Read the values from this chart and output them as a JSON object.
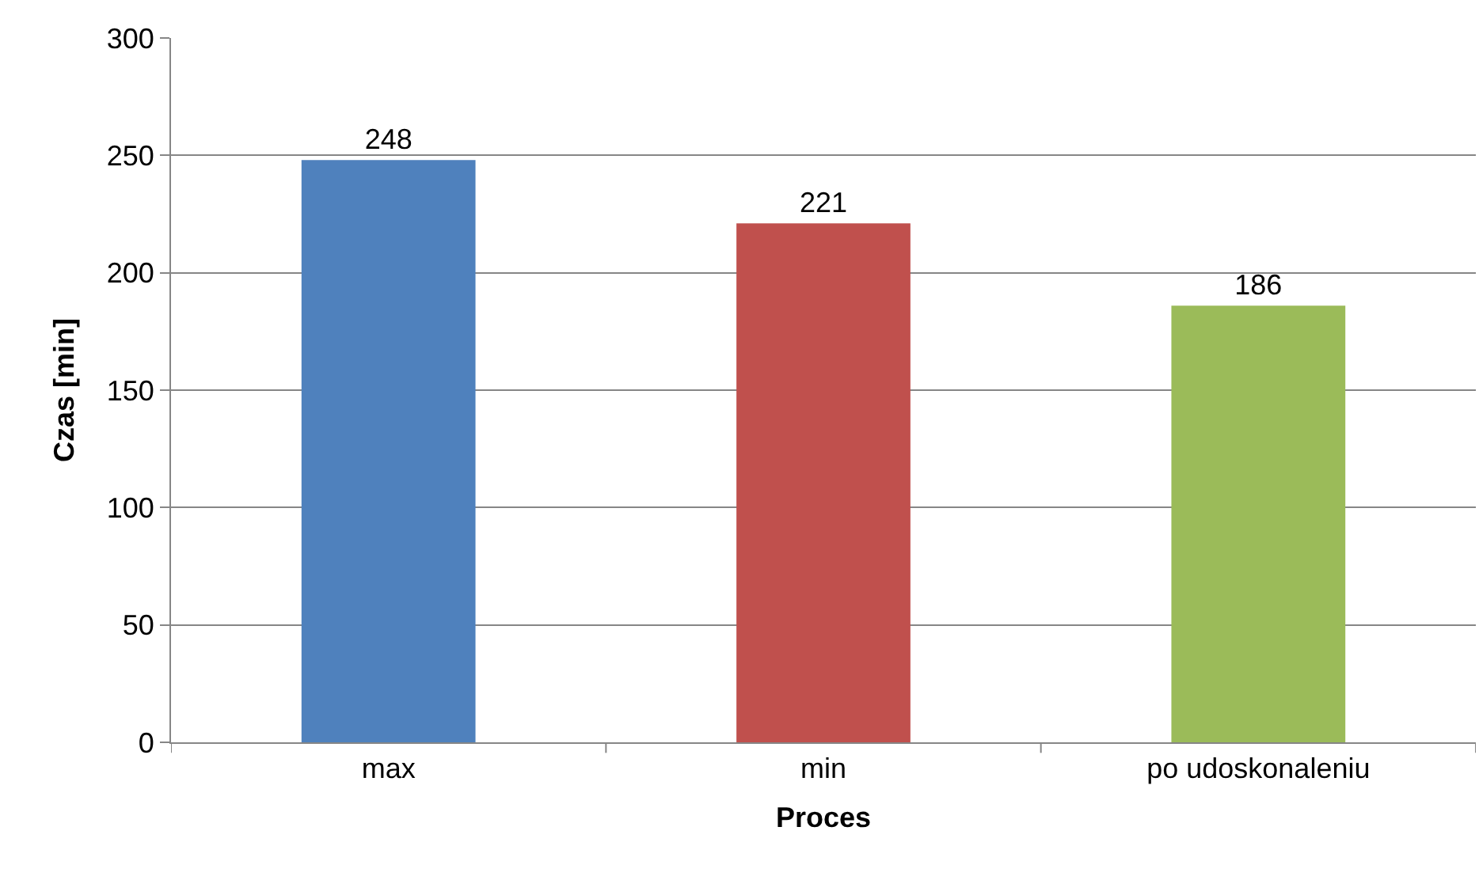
{
  "chart_data": {
    "type": "bar",
    "xlabel": "Proces",
    "ylabel": "Czas [min]",
    "categories": [
      "max",
      "min",
      "po udoskonaleniu"
    ],
    "values": [
      248,
      221,
      186
    ],
    "colors": [
      "#4f81bd",
      "#c0504d",
      "#9bbb59"
    ],
    "ylim": [
      0,
      300
    ],
    "yticks": [
      0,
      50,
      100,
      150,
      200,
      250,
      300
    ],
    "grid": "y",
    "data_labels": true,
    "legend": false
  }
}
